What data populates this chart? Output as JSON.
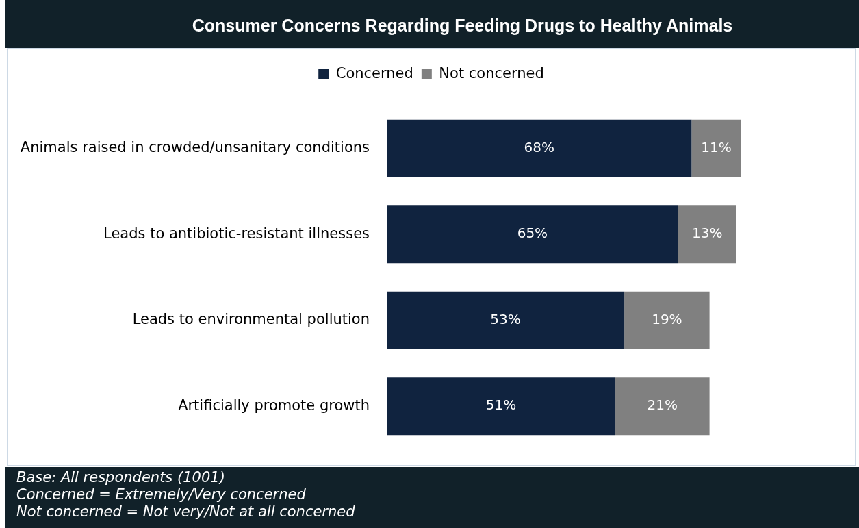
{
  "chart_data": {
    "type": "bar",
    "orientation": "horizontal",
    "stacked": true,
    "title": "Consumer Concerns Regarding Feeding Drugs to Healthy Animals",
    "categories": [
      "Animals raised in crowded/unsanitary conditions",
      "Leads to antibiotic-resistant illnesses",
      "Leads to environmental pollution",
      "Artificially promote growth"
    ],
    "series": [
      {
        "name": "Concerned",
        "color": "#10233f",
        "values": [
          68,
          65,
          53,
          51
        ],
        "value_labels": [
          "68%",
          "65%",
          "53%",
          "51%"
        ]
      },
      {
        "name": "Not concerned",
        "color": "#808080",
        "values": [
          11,
          13,
          19,
          21
        ],
        "value_labels": [
          "11%",
          "13%",
          "19%",
          "21%"
        ]
      }
    ],
    "tick_labels": "y",
    "grid": false,
    "legend": "top",
    "annotations": [
      "Base: All respondents (1001)",
      "Concerned = Extremely/Very concerned",
      "Not concerned = Not very/Not at all concerned"
    ]
  }
}
